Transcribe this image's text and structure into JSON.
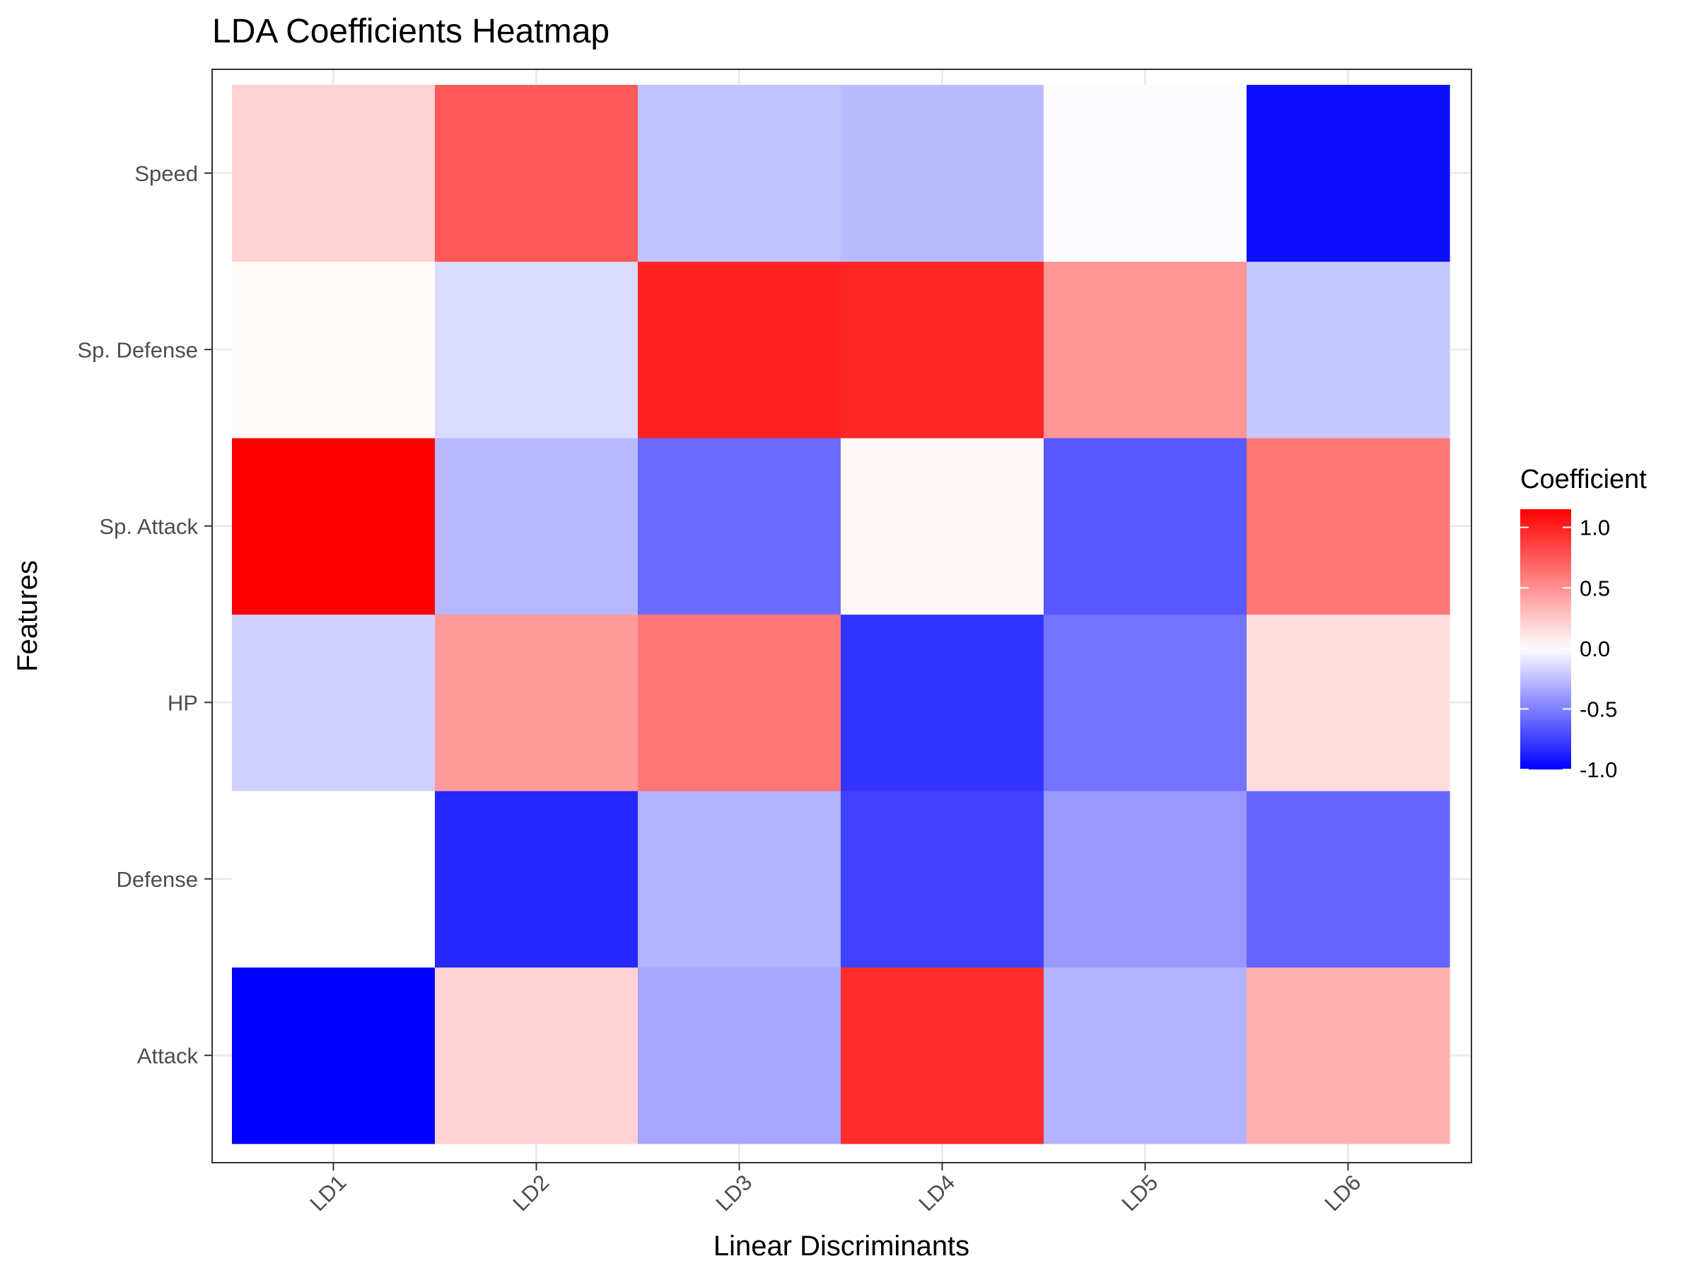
{
  "chart_data": {
    "type": "heatmap",
    "title": "LDA Coefficients Heatmap",
    "xlabel": "Linear Discriminants",
    "ylabel": "Features",
    "x_categories": [
      "LD1",
      "LD2",
      "LD3",
      "LD4",
      "LD5",
      "LD6"
    ],
    "y_categories": [
      "Attack",
      "Defense",
      "HP",
      "Sp. Attack",
      "Sp. Defense",
      "Speed"
    ],
    "values": [
      [
        -1.0,
        0.2,
        -0.35,
        0.95,
        -0.3,
        0.35
      ],
      [
        0.0,
        -0.85,
        -0.3,
        -0.75,
        -0.4,
        -0.6
      ],
      [
        -0.18,
        0.45,
        0.62,
        -0.8,
        -0.55,
        0.15
      ],
      [
        1.15,
        -0.28,
        -0.58,
        0.04,
        -0.65,
        0.62
      ],
      [
        0.02,
        -0.14,
        1.0,
        0.98,
        0.48,
        -0.22
      ],
      [
        0.2,
        0.75,
        -0.24,
        -0.27,
        -0.01,
        -0.95
      ]
    ],
    "legend": {
      "title": "Coefficient",
      "ticks": [
        1.0,
        0.5,
        0.0,
        -0.5,
        -1.0
      ],
      "tick_labels": [
        "1.0",
        "0.5",
        "0.0",
        "-0.5",
        "-1.0"
      ],
      "range": [
        -1.0,
        1.15
      ],
      "placement": "right"
    },
    "colors": {
      "low": "#0000ff",
      "mid": "#ffffff",
      "high": "#ff0000"
    },
    "grid": true
  }
}
